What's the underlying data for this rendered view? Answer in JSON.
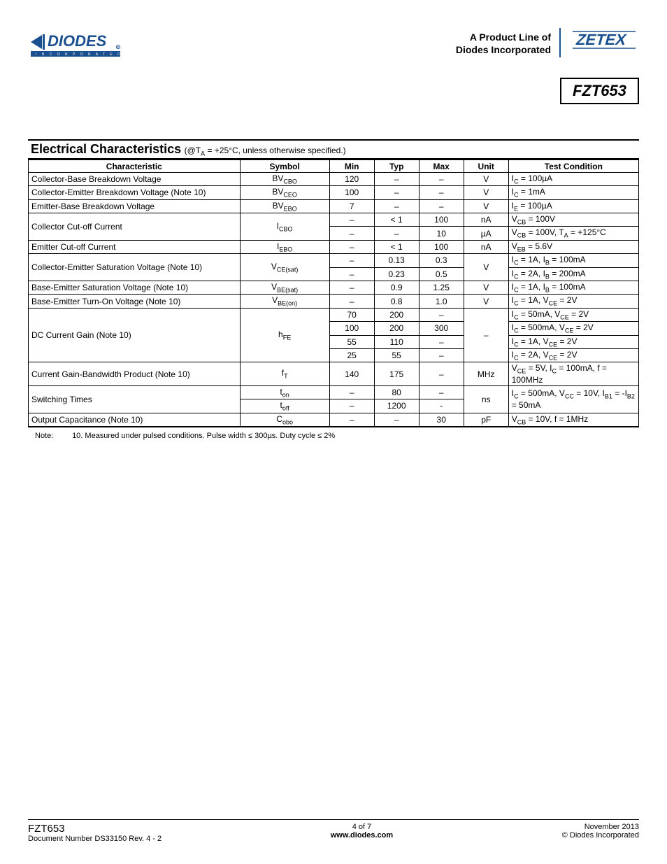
{
  "header": {
    "tagline_l1": "A Product Line of",
    "tagline_l2": "Diodes Incorporated",
    "part_number": "FZT653",
    "diodes_logo_text": "DIODES",
    "diodes_logo_sub": "I N C O R P O R A T E D",
    "zetex_logo_text": "ZETEX",
    "logo_colors": {
      "diodes": "#1a4f8f",
      "zetex": "#1a4f8f"
    }
  },
  "section": {
    "title": "Electrical Characteristics",
    "condition_html": "(@T<sub>A</sub> = +25°C, unless otherwise specified.)"
  },
  "table": {
    "columns": [
      "Characteristic",
      "Symbol",
      "Min",
      "Typ",
      "Max",
      "Unit",
      "Test Condition"
    ],
    "rows": [
      {
        "char": "Collector-Base Breakdown Voltage",
        "sym": "BV<sub>CBO</sub>",
        "min": "120",
        "typ": "–",
        "max": "–",
        "unit": "V",
        "cond": "I<sub>C</sub> = 100µA"
      },
      {
        "char": "Collector-Emitter Breakdown Voltage (Note 10)",
        "sym": "BV<sub>CEO</sub>",
        "min": "100",
        "typ": "–",
        "max": "–",
        "unit": "V",
        "cond": "I<sub>C</sub> = 1mA"
      },
      {
        "char": "Emitter-Base Breakdown Voltage",
        "sym": "BV<sub>EBO</sub>",
        "min": "7",
        "typ": "–",
        "max": "–",
        "unit": "V",
        "cond": "I<sub>E</sub> = 100µA"
      },
      {
        "char": "Collector Cut-off Current",
        "sym": "I<sub>CBO</sub>",
        "rowspan": 2,
        "sub": [
          {
            "min": "–",
            "typ": "< 1",
            "max": "100",
            "unit": "nA",
            "cond": "V<sub>CB</sub> = 100V"
          },
          {
            "min": "–",
            "typ": "–",
            "max": "10",
            "unit": "µA",
            "cond": "V<sub>CB</sub> = 100V, T<sub>A</sub> = +125°C"
          }
        ]
      },
      {
        "char": "Emitter Cut-off Current",
        "sym": "I<sub>EBO</sub>",
        "min": "–",
        "typ": "< 1",
        "max": "100",
        "unit": "nA",
        "cond": "V<sub>EB</sub>  = 5.6V"
      },
      {
        "char": "Collector-Emitter Saturation Voltage (Note 10)",
        "sym": "V<sub>CE(sat)</sub>",
        "rowspan": 2,
        "unit_merged": "V",
        "sub": [
          {
            "min": "–",
            "typ": "0.13",
            "max": "0.3",
            "cond": "I<sub>C</sub> = 1A, I<sub>B</sub> = 100mA"
          },
          {
            "min": "–",
            "typ": "0.23",
            "max": "0.5",
            "cond": "I<sub>C</sub> = 2A, I<sub>B</sub> = 200mA"
          }
        ]
      },
      {
        "char": "Base-Emitter Saturation Voltage (Note 10)",
        "sym": "V<sub>BE(sat)</sub>",
        "min": "–",
        "typ": "0.9",
        "max": "1.25",
        "unit": "V",
        "cond": "I<sub>C</sub> = 1A, I<sub>B</sub> = 100mA"
      },
      {
        "char": "Base-Emitter Turn-On Voltage (Note 10)",
        "sym": "V<sub>BE(on)</sub>",
        "min": "–",
        "typ": "0.8",
        "max": "1.0",
        "unit": "V",
        "cond": "I<sub>C</sub> = 1A, V<sub>CE</sub> = 2V"
      },
      {
        "char": "DC Current Gain (Note 10)",
        "sym": "h<sub>FE</sub>",
        "rowspan": 4,
        "unit_merged": "–",
        "sub": [
          {
            "min": "70",
            "typ": "200",
            "max": "–",
            "cond": "I<sub>C</sub> = 50mA, V<sub>CE</sub> = 2V"
          },
          {
            "min": "100",
            "typ": "200",
            "max": "300",
            "cond": "I<sub>C</sub> = 500mA, V<sub>CE</sub> = 2V"
          },
          {
            "min": "55",
            "typ": "110",
            "max": "–",
            "cond": "I<sub>C</sub> = 1A, V<sub>CE</sub> = 2V"
          },
          {
            "min": "25",
            "typ": "55",
            "max": "–",
            "cond": "I<sub>C</sub> = 2A, V<sub>CE</sub> = 2V"
          }
        ]
      },
      {
        "char": "Current Gain-Bandwidth Product (Note 10)",
        "sym": "f<sub>T</sub>",
        "min": "140",
        "typ": "175",
        "max": "–",
        "unit": "MHz",
        "cond": "V<sub>CE</sub> = 5V, I<sub>C</sub> = 100mA, f = 100MHz"
      },
      {
        "char": "Switching Times",
        "rowspan": 2,
        "unit_merged": "ns",
        "cond_merged": "I<sub>C</sub> = 500mA, V<sub>CC</sub> = 10V, I<sub>B1</sub> = -I<sub>B2</sub> = 50mA",
        "sub": [
          {
            "sym": "t<sub>on</sub>",
            "min": "–",
            "typ": "80",
            "max": "–"
          },
          {
            "sym": "t<sub>off</sub>",
            "min": "–",
            "typ": "1200",
            "max": "-"
          }
        ]
      },
      {
        "char": "Output Capacitance (Note 10)",
        "sym": "C<sub>obo</sub>",
        "min": "–",
        "typ": "–",
        "max": "30",
        "unit": "pF",
        "cond": "V<sub>CB</sub> = 10V, f = 1MHz"
      }
    ]
  },
  "note": {
    "label": "Note:",
    "text": "10. Measured under pulsed conditions. Pulse width ≤ 300µs. Duty cycle ≤ 2%"
  },
  "footer": {
    "part": "FZT653",
    "doc": "Document Number DS33150 Rev. 4 - 2",
    "page": "4 of 7",
    "url": "www.diodes.com",
    "date": "November 2013",
    "copyright": "© Diodes Incorporated"
  }
}
